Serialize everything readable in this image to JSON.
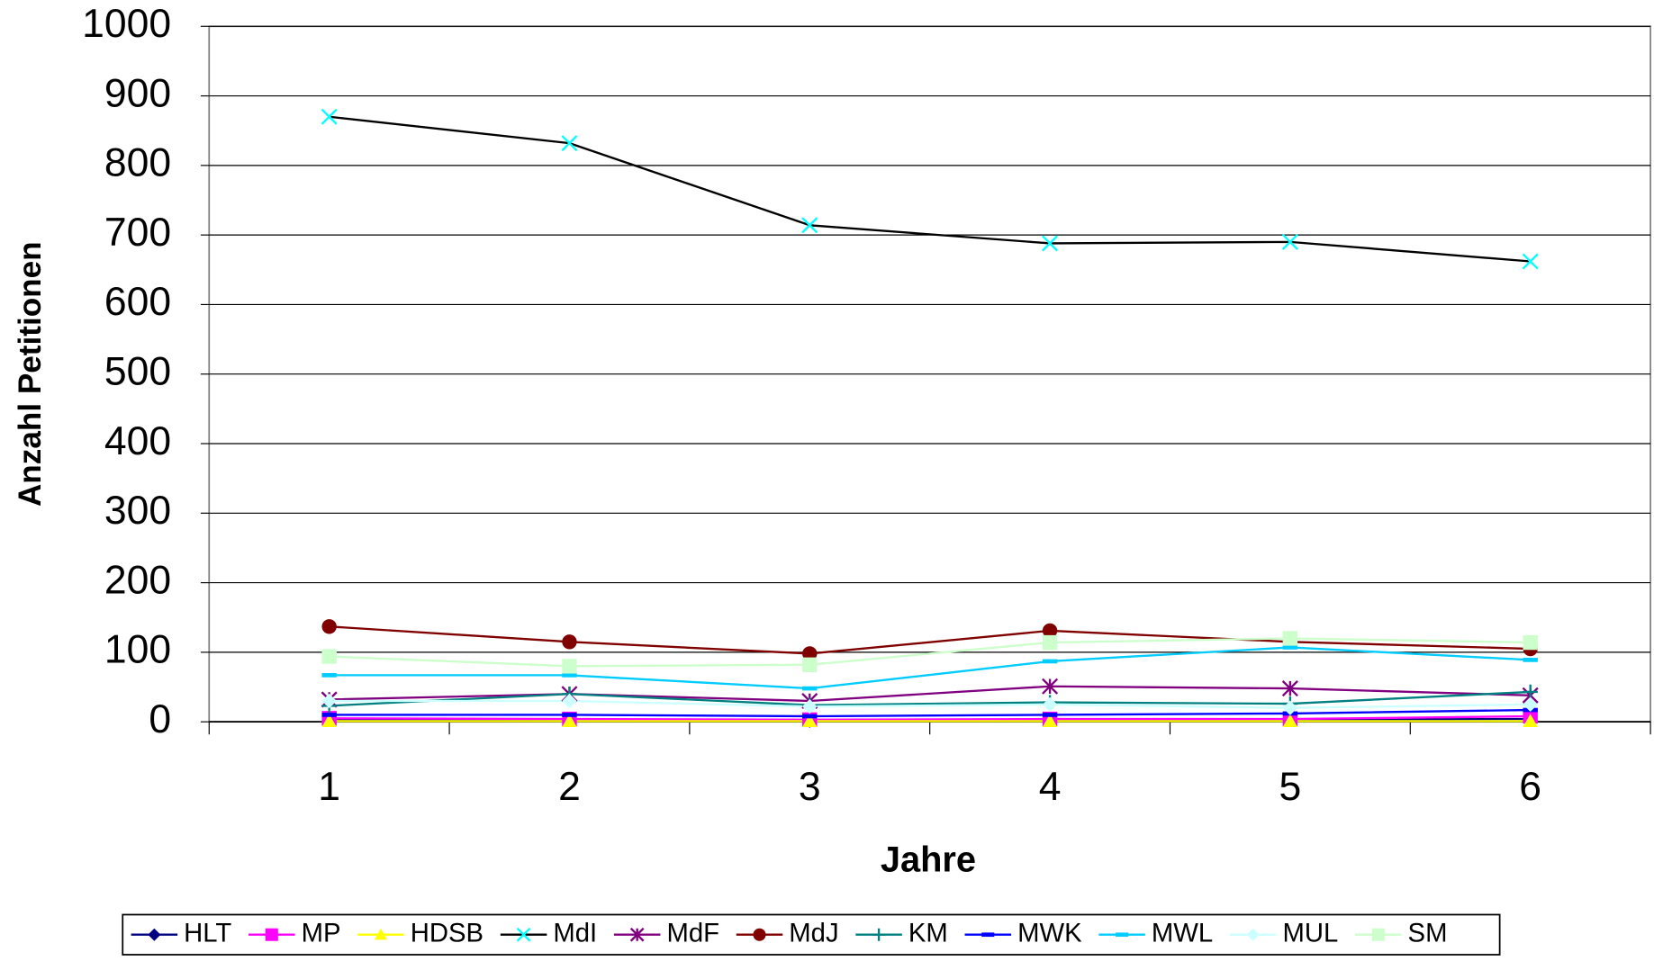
{
  "chart_data": {
    "type": "line",
    "xlabel": "Jahre",
    "ylabel": "Anzahl Petitionen",
    "categories": [
      "1",
      "2",
      "3",
      "4",
      "5",
      "6"
    ],
    "ylim": [
      0,
      1000
    ],
    "yticks": [
      0,
      100,
      200,
      300,
      400,
      500,
      600,
      700,
      800,
      900,
      1000
    ],
    "grid": true,
    "legend": "bottom",
    "series": [
      {
        "name": "HLT",
        "color": "#000080",
        "marker": "diamond",
        "marker_color": "#000080",
        "values": [
          3,
          3,
          2,
          3,
          3,
          4
        ]
      },
      {
        "name": "MP",
        "color": "#ff00ff",
        "marker": "square",
        "marker_color": "#ff00ff",
        "values": [
          5,
          4,
          3,
          4,
          4,
          8
        ]
      },
      {
        "name": "HDSB",
        "color": "#ffff00",
        "marker": "triangle",
        "marker_color": "#ffff00",
        "values": [
          1,
          1,
          1,
          1,
          1,
          1
        ]
      },
      {
        "name": "MdI",
        "color": "#000000",
        "marker": "x",
        "marker_color": "#00ffff",
        "values": [
          870,
          832,
          714,
          688,
          690,
          662
        ]
      },
      {
        "name": "MdF",
        "color": "#800080",
        "marker": "star",
        "marker_color": "#800080",
        "values": [
          32,
          40,
          30,
          51,
          48,
          38
        ]
      },
      {
        "name": "MdJ",
        "color": "#800000",
        "marker": "circle",
        "marker_color": "#800000",
        "values": [
          137,
          115,
          98,
          131,
          115,
          105
        ]
      },
      {
        "name": "KM",
        "color": "#008080",
        "marker": "plus",
        "marker_color": "#008080",
        "values": [
          23,
          40,
          24,
          28,
          26,
          43
        ]
      },
      {
        "name": "MWK",
        "color": "#0000ff",
        "marker": "dash",
        "marker_color": "#0000ff",
        "values": [
          10,
          10,
          8,
          10,
          12,
          17
        ]
      },
      {
        "name": "MWL",
        "color": "#00ccff",
        "marker": "dash",
        "marker_color": "#00ccff",
        "values": [
          67,
          67,
          48,
          87,
          107,
          89
        ]
      },
      {
        "name": "MUL",
        "color": "#ccffff",
        "marker": "diamond",
        "marker_color": "#ccffff",
        "values": [
          30,
          30,
          22,
          25,
          20,
          25
        ]
      },
      {
        "name": "SM",
        "color": "#ccffcc",
        "marker": "square",
        "marker_color": "#ccffcc",
        "values": [
          94,
          80,
          82,
          114,
          120,
          114
        ]
      }
    ]
  }
}
